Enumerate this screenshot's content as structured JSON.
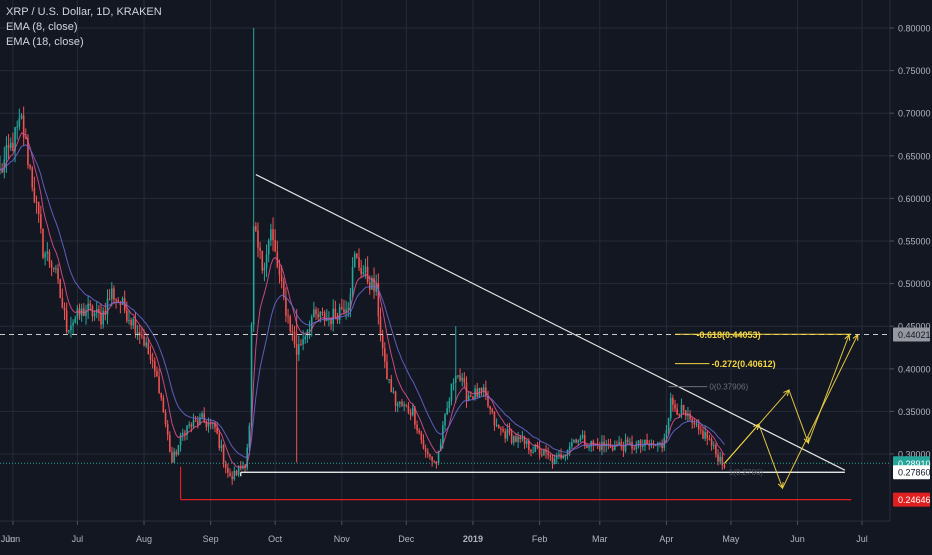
{
  "legend": {
    "symbol": "XRP / U.S. Dollar, 1D, KRAKEN",
    "ema_fast": "EMA (8, close)",
    "ema_slow": "EMA (18, close)"
  },
  "colors": {
    "background": "#131722",
    "grid": "#262b3a",
    "axis_text": "#b2b5be",
    "up_candle": "#26a69a",
    "down_candle": "#ef5350",
    "ema_fast": "#e5508f",
    "ema_slow": "#6b6ad9",
    "trendline": "#e6e6e6",
    "fib": "#f5d742",
    "support": "#ffffff",
    "low_line": "#e02020",
    "dashed": "#cccccc",
    "current_price": "#26a69a"
  },
  "chart_data": {
    "type": "candlestick",
    "symbol": "XRP / U.S. Dollar",
    "interval": "1D",
    "exchange": "KRAKEN",
    "indicators": [
      "EMA (8, close)",
      "EMA (18, close)"
    ],
    "ylim": [
      0.22,
      0.81
    ],
    "xlim": [
      "2018-05-26",
      "2019-07-14"
    ],
    "x_ticks": [
      "Jun",
      "Jul",
      "Aug",
      "Sep",
      "Oct",
      "Nov",
      "Dec",
      "2019",
      "Feb",
      "Mar",
      "Apr",
      "May",
      "Jun",
      "Jul"
    ],
    "x_tick_dates": [
      "2018-06-01",
      "2018-07-01",
      "2018-08-01",
      "2018-09-01",
      "2018-10-01",
      "2018-11-01",
      "2018-12-01",
      "2019-01-01",
      "2019-02-01",
      "2019-03-01",
      "2019-04-01",
      "2019-05-01",
      "2019-06-01",
      "2019-07-01"
    ],
    "y_ticks": [
      "0.80000",
      "0.75000",
      "0.70000",
      "0.65000",
      "0.60000",
      "0.55000",
      "0.50000",
      "0.45000",
      "0.40000",
      "0.35000",
      "0.30000"
    ],
    "y_tick_values": [
      0.8,
      0.75,
      0.7,
      0.65,
      0.6,
      0.55,
      0.5,
      0.45,
      0.4,
      0.35,
      0.3
    ],
    "price_labels": [
      {
        "text": "0.44021",
        "value": 0.44021,
        "style": "gray"
      },
      {
        "text": "0.28910",
        "value": 0.2891,
        "style": "green"
      },
      {
        "text": "0.27860",
        "value": 0.2786,
        "style": "white"
      },
      {
        "text": "0.24646",
        "value": 0.24646,
        "style": "red"
      }
    ],
    "price_keypoints": [
      [
        "2018-05-26",
        0.63
      ],
      [
        "2018-06-05",
        0.69
      ],
      [
        "2018-06-10",
        0.62
      ],
      [
        "2018-06-15",
        0.54
      ],
      [
        "2018-06-20",
        0.52
      ],
      [
        "2018-06-26",
        0.45
      ],
      [
        "2018-07-05",
        0.47
      ],
      [
        "2018-07-12",
        0.46
      ],
      [
        "2018-07-17",
        0.49
      ],
      [
        "2018-07-23",
        0.47
      ],
      [
        "2018-07-31",
        0.44
      ],
      [
        "2018-08-08",
        0.38
      ],
      [
        "2018-08-14",
        0.29
      ],
      [
        "2018-08-20",
        0.33
      ],
      [
        "2018-08-28",
        0.34
      ],
      [
        "2018-09-03",
        0.33
      ],
      [
        "2018-09-10",
        0.27
      ],
      [
        "2018-09-17",
        0.29
      ],
      [
        "2018-09-19",
        0.33
      ],
      [
        "2018-09-21",
        0.56
      ],
      [
        "2018-09-25",
        0.52
      ],
      [
        "2018-09-29",
        0.56
      ],
      [
        "2018-10-05",
        0.48
      ],
      [
        "2018-10-11",
        0.42
      ],
      [
        "2018-10-18",
        0.46
      ],
      [
        "2018-10-27",
        0.46
      ],
      [
        "2018-11-04",
        0.48
      ],
      [
        "2018-11-07",
        0.53
      ],
      [
        "2018-11-12",
        0.51
      ],
      [
        "2018-11-17",
        0.49
      ],
      [
        "2018-11-21",
        0.4
      ],
      [
        "2018-11-26",
        0.36
      ],
      [
        "2018-12-04",
        0.35
      ],
      [
        "2018-12-10",
        0.3
      ],
      [
        "2018-12-15",
        0.29
      ],
      [
        "2018-12-19",
        0.34
      ],
      [
        "2018-12-24",
        0.4
      ],
      [
        "2018-12-29",
        0.37
      ],
      [
        "2019-01-06",
        0.37
      ],
      [
        "2019-01-12",
        0.33
      ],
      [
        "2019-01-19",
        0.32
      ],
      [
        "2019-01-26",
        0.31
      ],
      [
        "2019-02-03",
        0.3
      ],
      [
        "2019-02-08",
        0.29
      ],
      [
        "2019-02-18",
        0.32
      ],
      [
        "2019-02-26",
        0.31
      ],
      [
        "2019-03-10",
        0.31
      ],
      [
        "2019-03-22",
        0.31
      ],
      [
        "2019-03-30",
        0.31
      ],
      [
        "2019-04-03",
        0.36
      ],
      [
        "2019-04-08",
        0.35
      ],
      [
        "2019-04-14",
        0.33
      ],
      [
        "2019-04-20",
        0.32
      ],
      [
        "2019-04-24",
        0.3
      ],
      [
        "2019-04-28",
        0.289
      ]
    ],
    "spikes": [
      {
        "date": "2018-09-21",
        "high": 0.8,
        "low": 0.45
      },
      {
        "date": "2018-10-11",
        "high": 0.47,
        "low": 0.29
      },
      {
        "date": "2018-12-24",
        "high": 0.45,
        "low": 0.36
      }
    ],
    "annotations": [
      {
        "text": "-0.618(0.44053)",
        "value": 0.44053
      },
      {
        "text": "-0.272(0.40612)",
        "value": 0.40612
      },
      {
        "text": "0(0.37906)",
        "value": 0.37906
      },
      {
        "text": "1(0.2786)",
        "value": 0.2786
      }
    ],
    "lines": {
      "trendline": {
        "from": [
          "2018-09-22",
          0.628
        ],
        "to": [
          "2019-06-23",
          0.281
        ]
      },
      "resistance_dashed": {
        "value": 0.44021
      },
      "support": {
        "from": [
          "2018-09-15",
          0.2786
        ],
        "to": [
          "2019-06-23",
          0.2786
        ]
      },
      "low": {
        "from": [
          "2018-08-18",
          0.24646
        ],
        "to": [
          "2019-06-26",
          0.24646
        ]
      },
      "current": {
        "value": 0.2891
      }
    },
    "projection_paths": [
      [
        [
          "2019-04-28",
          0.289
        ],
        [
          "2019-05-14",
          0.335
        ],
        [
          "2019-05-25",
          0.26
        ],
        [
          "2019-06-29",
          0.44
        ]
      ],
      [
        [
          "2019-04-28",
          0.289
        ],
        [
          "2019-05-28",
          0.375
        ],
        [
          "2019-06-06",
          0.313
        ],
        [
          "2019-06-25",
          0.44
        ]
      ]
    ]
  }
}
